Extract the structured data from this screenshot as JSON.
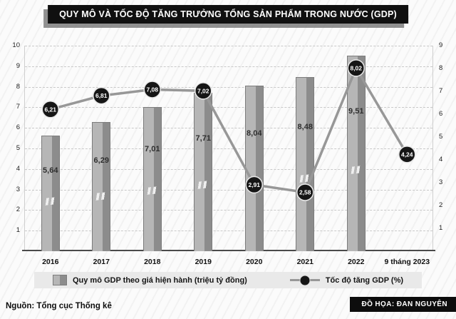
{
  "title": "QUY MÔ VÀ TỐC ĐỘ TĂNG TRƯỞNG TỔNG SẢN PHẨM TRONG NƯỚC (GDP)",
  "source": "Nguồn: Tổng cục Thống kê",
  "credit": "ĐỒ HỌA: ĐAN NGUYÊN",
  "legend": {
    "bar_label": "Quy mô GDP theo giá hiện hành (triệu tỷ đồng)",
    "line_label": "Tốc độ tăng GDP (%)",
    "position": "bottom"
  },
  "chart_data": {
    "type": "bar+line",
    "title": "QUY MÔ VÀ TỐC ĐỘ TĂNG TRƯỞNG TỔNG SẢN PHẨM TRONG NƯỚC (GDP)",
    "categories": [
      "2016",
      "2017",
      "2018",
      "2019",
      "2020",
      "2021",
      "2022",
      "9 tháng 2023"
    ],
    "series": [
      {
        "name": "Quy mô GDP theo giá hiện hành (triệu tỷ đồng)",
        "type": "bar",
        "axis": "left",
        "values": [
          5.64,
          6.29,
          7.01,
          7.71,
          8.04,
          8.48,
          9.51,
          null
        ],
        "labels": [
          "5,64",
          "6,29",
          "7,01",
          "7,71",
          "8,04",
          "8,48",
          "9,51",
          ""
        ]
      },
      {
        "name": "Tốc độ tăng GDP (%)",
        "type": "line",
        "axis": "right",
        "values": [
          6.21,
          6.81,
          7.08,
          7.02,
          2.91,
          2.58,
          8.02,
          4.24
        ],
        "labels": [
          "6,21",
          "6,81",
          "7,08",
          "7,02",
          "2,91",
          "2,58",
          "8,02",
          "4,24"
        ]
      }
    ],
    "left_axis": {
      "min": 0,
      "max": 10,
      "ticks": [
        1,
        2,
        3,
        4,
        5,
        6,
        7,
        8,
        9,
        10
      ]
    },
    "right_axis": {
      "min": 0,
      "max": 9,
      "ticks": [
        1,
        2,
        3,
        4,
        5,
        6,
        7,
        8,
        9
      ]
    },
    "grid": true,
    "colors": {
      "bar_light": "#b6b6b6",
      "bar_dark": "#8c8c8c",
      "line": "#979797",
      "marker": "#161616",
      "marker_text": "#ffffff",
      "banner_bg": "#101010",
      "banner_text": "#ffffff"
    }
  }
}
